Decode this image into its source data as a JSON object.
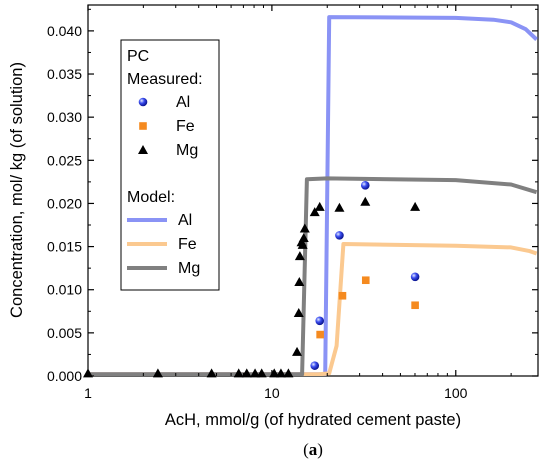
{
  "chart_data": {
    "type": "scatter",
    "xscale": "log",
    "xlim": [
      1,
      280
    ],
    "ylim": [
      0,
      0.043
    ],
    "xlabel": "AcH, mmol/g (of hydrated cement paste)",
    "ylabel": "Concentration, mol/ kg (of solution)",
    "caption_prefix": "(",
    "caption_bold": "a",
    "caption_suffix": ")",
    "grid": false,
    "legend_position": "top-left",
    "xticks": [
      1,
      10,
      100
    ],
    "xtick_labels": [
      "1",
      "10",
      "100"
    ],
    "yticks": [
      0,
      0.005,
      0.01,
      0.015,
      0.02,
      0.025,
      0.03,
      0.035,
      0.04
    ],
    "ytick_labels": [
      "0.000",
      "0.005",
      "0.010",
      "0.015",
      "0.020",
      "0.025",
      "0.030",
      "0.035",
      "0.040"
    ],
    "legend": {
      "title": "PC",
      "measured_heading": "Measured:",
      "model_heading": "Model:"
    },
    "measured": [
      {
        "name": "Al",
        "marker": "sphere",
        "color": "#1a2fd6",
        "points": [
          [
            17.1,
            0.0012
          ],
          [
            18.2,
            0.0064
          ],
          [
            23.3,
            0.0163
          ],
          [
            32.2,
            0.0221
          ],
          [
            60.1,
            0.0115
          ]
        ]
      },
      {
        "name": "Fe",
        "marker": "square",
        "color": "#f58a1f",
        "points": [
          [
            18.3,
            0.0048
          ],
          [
            24.2,
            0.0093
          ],
          [
            32.4,
            0.0111
          ],
          [
            60.1,
            0.0082
          ]
        ]
      },
      {
        "name": "Mg",
        "marker": "triangle",
        "color": "#000000",
        "points": [
          [
            1.0,
            0.0003
          ],
          [
            2.4,
            0.0003
          ],
          [
            4.7,
            0.0003
          ],
          [
            6.6,
            0.0003
          ],
          [
            7.3,
            0.0003
          ],
          [
            8.1,
            0.0003
          ],
          [
            8.8,
            0.0003
          ],
          [
            10.3,
            0.0003
          ],
          [
            11.2,
            0.0003
          ],
          [
            12.3,
            0.0003
          ],
          [
            13.7,
            0.0028
          ],
          [
            14.0,
            0.0073
          ],
          [
            14.1,
            0.0109
          ],
          [
            14.2,
            0.0139
          ],
          [
            14.5,
            0.0155
          ],
          [
            14.7,
            0.0152
          ],
          [
            14.9,
            0.016
          ],
          [
            15.1,
            0.0171
          ],
          [
            17.1,
            0.019
          ],
          [
            18.2,
            0.0196
          ],
          [
            23.3,
            0.0195
          ],
          [
            32.2,
            0.0202
          ],
          [
            60.1,
            0.0196
          ]
        ]
      }
    ],
    "model": [
      {
        "name": "Al",
        "color": "#8a93f5",
        "points": [
          [
            1,
            0.0002
          ],
          [
            14,
            0.0002
          ],
          [
            16.5,
            0.0002
          ],
          [
            19.5,
            0.0002
          ],
          [
            20.5,
            0.0416
          ],
          [
            100,
            0.0415
          ],
          [
            160,
            0.0413
          ],
          [
            200,
            0.041
          ],
          [
            240,
            0.0402
          ],
          [
            275,
            0.039
          ]
        ]
      },
      {
        "name": "Fe",
        "color": "#fbc990",
        "points": [
          [
            1,
            0.0002
          ],
          [
            18,
            0.0002
          ],
          [
            20.5,
            0.0003
          ],
          [
            22.5,
            0.0035
          ],
          [
            24.5,
            0.0153
          ],
          [
            100,
            0.0151
          ],
          [
            200,
            0.0149
          ],
          [
            250,
            0.0145
          ],
          [
            275,
            0.0142
          ]
        ]
      },
      {
        "name": "Mg",
        "color": "#808080",
        "points": [
          [
            1,
            0.0002
          ],
          [
            12.5,
            0.0002
          ],
          [
            14.6,
            0.0002
          ],
          [
            15.5,
            0.0228
          ],
          [
            20,
            0.0229
          ],
          [
            100,
            0.0227
          ],
          [
            200,
            0.0222
          ],
          [
            275,
            0.0213
          ]
        ]
      }
    ]
  }
}
